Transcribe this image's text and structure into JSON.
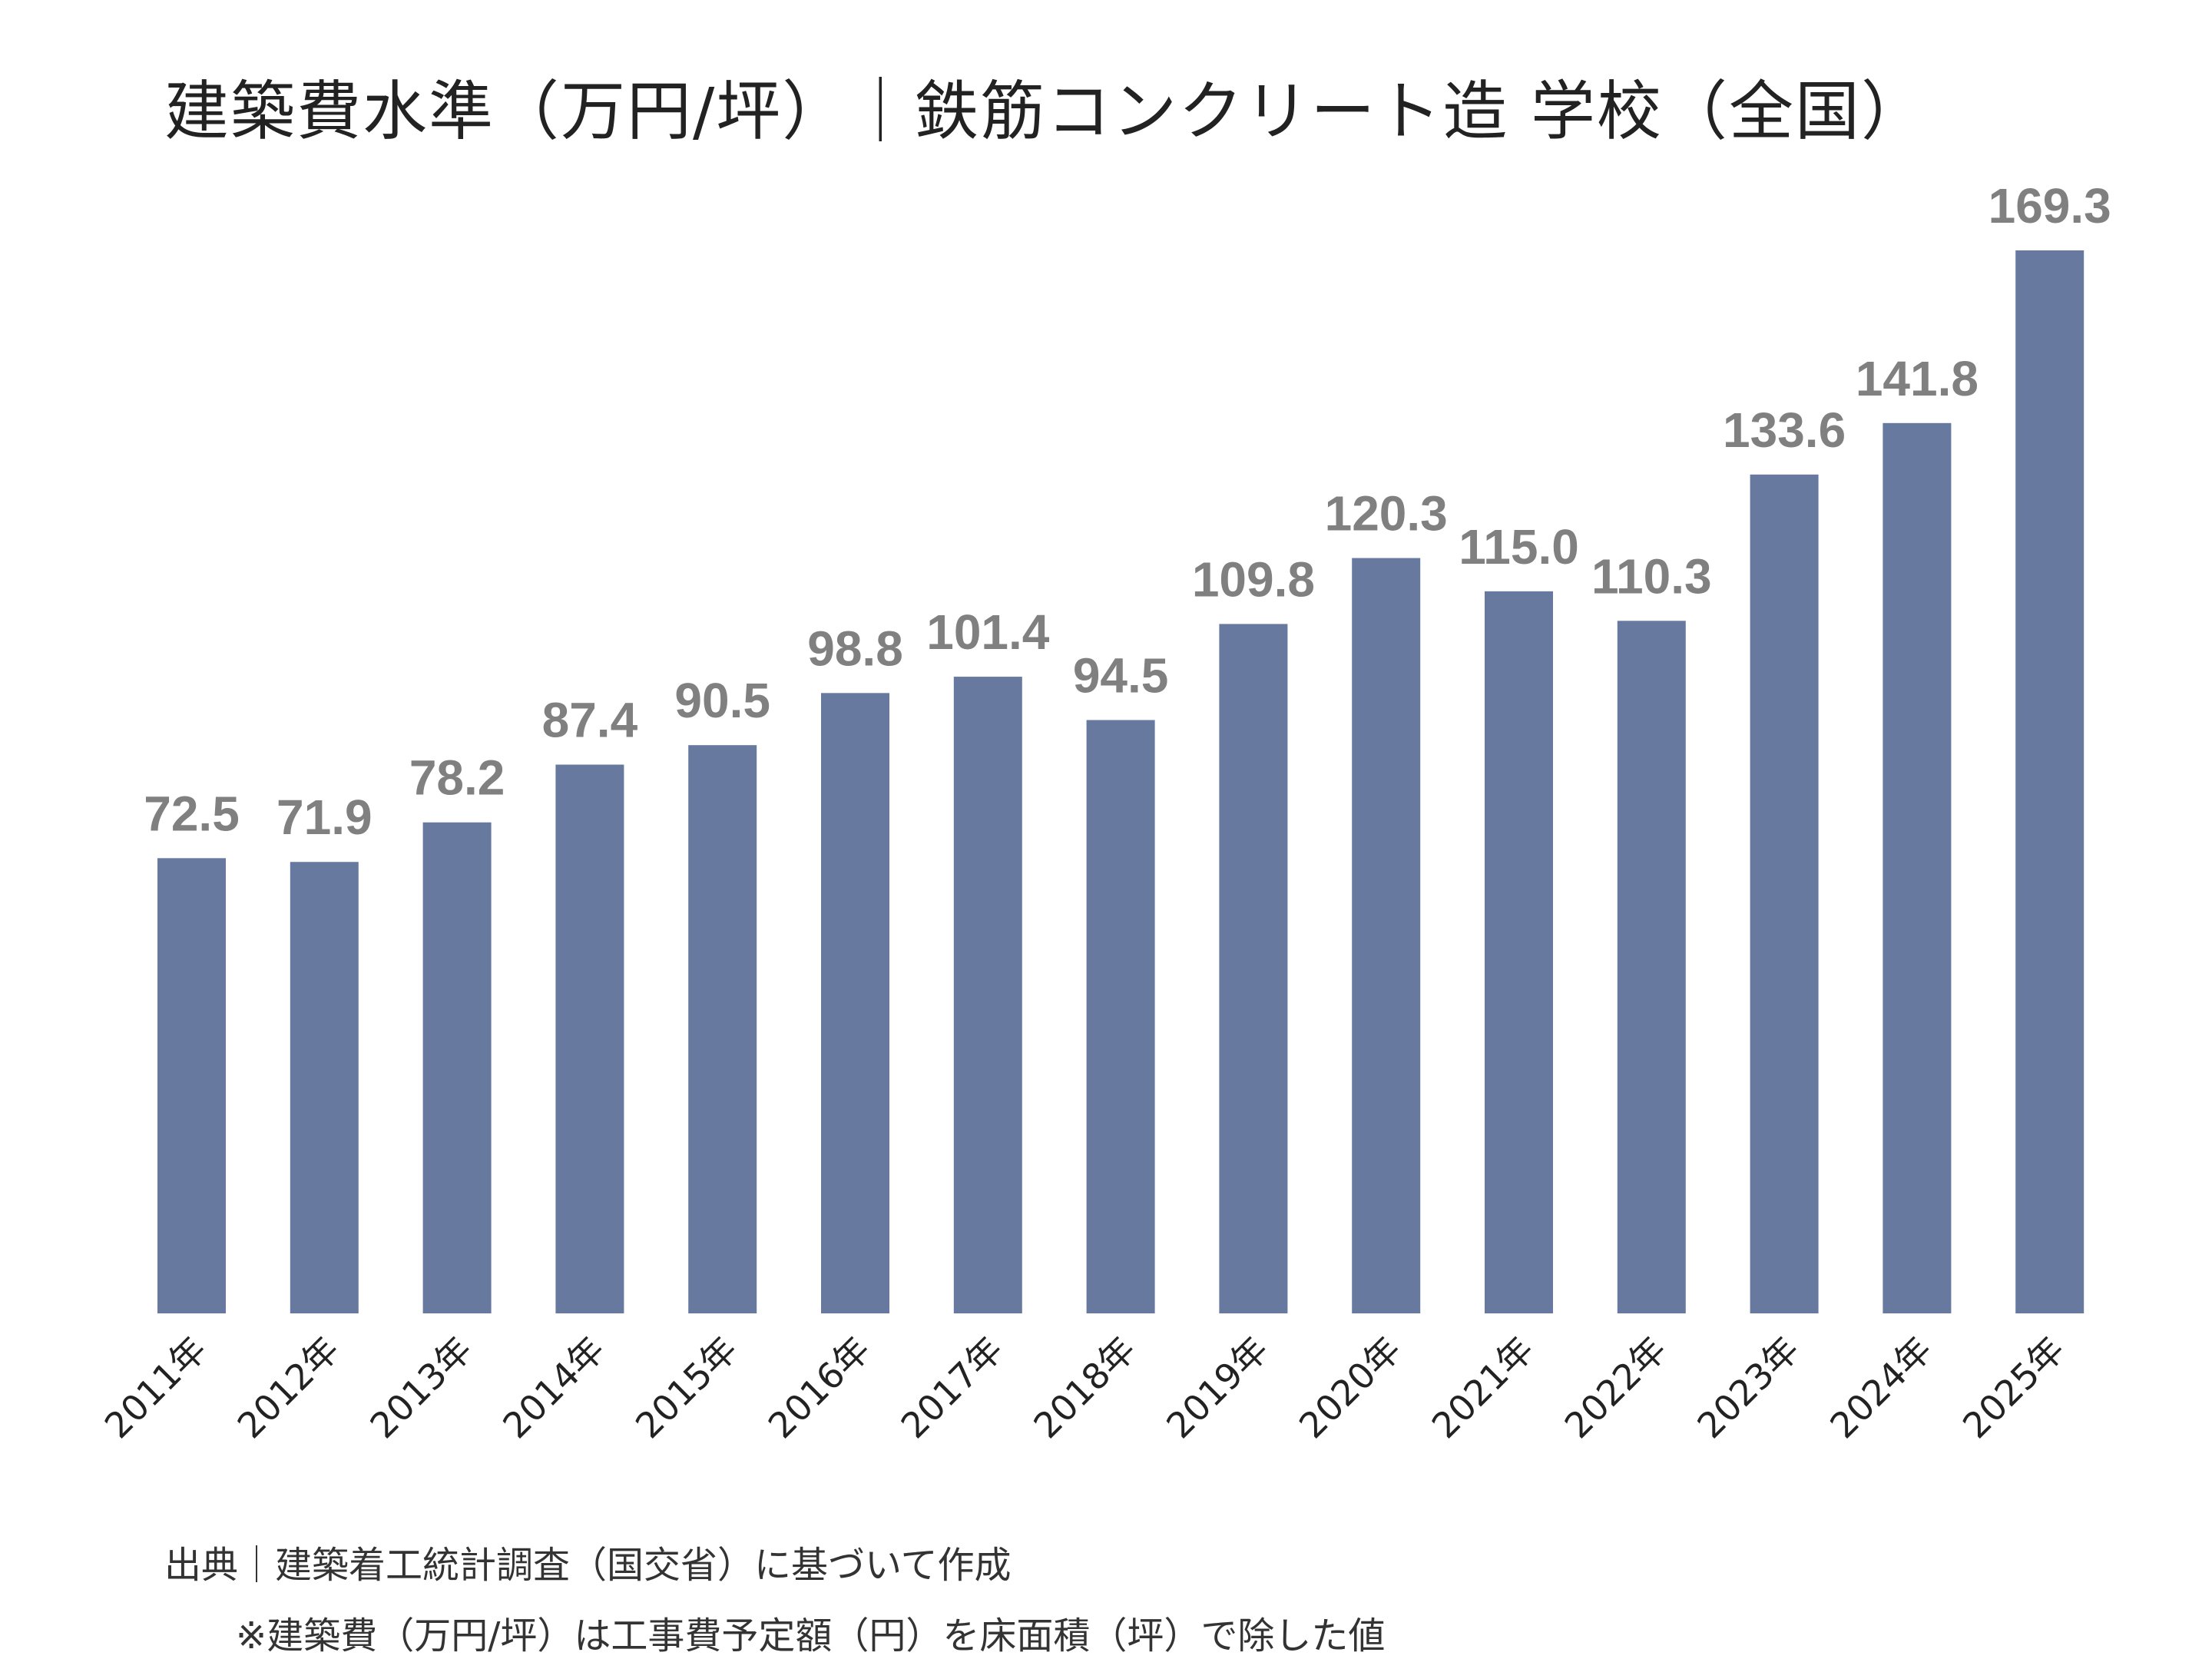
{
  "chart_data": {
    "type": "bar",
    "title": "建築費水準（万円/坪）｜鉄筋コンクリート造 学校（全国）",
    "categories": [
      "2011年",
      "2012年",
      "2013年",
      "2014年",
      "2015年",
      "2016年",
      "2017年",
      "2018年",
      "2019年",
      "2020年",
      "2021年",
      "2022年",
      "2023年",
      "2024年",
      "2025年"
    ],
    "values": [
      72.5,
      71.9,
      78.2,
      87.4,
      90.5,
      98.8,
      101.4,
      94.5,
      109.8,
      120.3,
      115.0,
      110.3,
      133.6,
      141.8,
      169.3
    ],
    "value_labels": [
      "72.5",
      "71.9",
      "78.2",
      "87.4",
      "90.5",
      "98.8",
      "101.4",
      "94.5",
      "109.8",
      "120.3",
      "115.0",
      "110.3",
      "133.6",
      "141.8",
      "169.3"
    ],
    "ylim": [
      0,
      169.3
    ],
    "grid": false,
    "y_axis_visible": false,
    "bar_color": "#67799f",
    "label_color": "#808080"
  },
  "footnotes": {
    "source": "出典｜建築着工統計調査（国交省）に基づいて作成",
    "note": "※建築費（万円/坪）は工事費予定額（円）を床面積（坪）で除した値"
  }
}
